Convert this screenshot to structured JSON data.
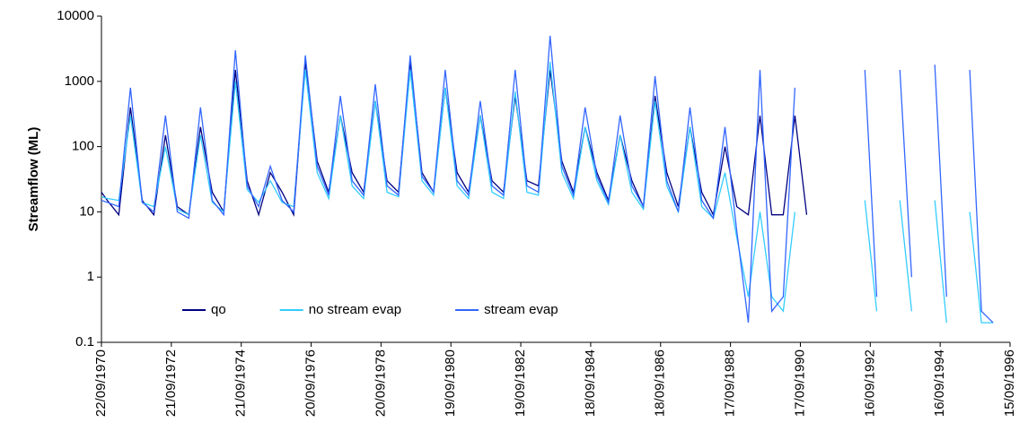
{
  "chart_data": {
    "type": "line",
    "y_label": "Streamflow (ML)",
    "y_log": true,
    "ylim": [
      0.1,
      10000
    ],
    "yticks": [
      0.1,
      1,
      10,
      100,
      1000,
      10000
    ],
    "xlim": [
      "22/09/1970",
      "15/09/1996"
    ],
    "xticks": [
      "22/09/1970",
      "21/09/1972",
      "21/09/1974",
      "20/09/1976",
      "20/09/1978",
      "19/09/1980",
      "19/09/1982",
      "18/09/1984",
      "18/09/1986",
      "17/09/1988",
      "17/09/1990",
      "16/09/1992",
      "16/09/1994",
      "15/09/1996"
    ],
    "grid": false,
    "legend": "lower left",
    "x": [
      "22/09/1970",
      "22/11/1970",
      "22/03/1971",
      "22/07/1971",
      "22/11/1971",
      "22/03/1972",
      "22/07/1972",
      "22/11/1972",
      "22/03/1973",
      "22/07/1973",
      "22/11/1973",
      "22/03/1974",
      "22/07/1974",
      "22/11/1974",
      "22/03/1975",
      "22/07/1975",
      "22/11/1975",
      "22/03/1976",
      "22/07/1976",
      "22/11/1976",
      "22/03/1977",
      "22/07/1977",
      "22/11/1977",
      "22/03/1978",
      "22/07/1978",
      "22/11/1978",
      "22/03/1979",
      "22/07/1979",
      "22/11/1979",
      "22/03/1980",
      "22/07/1980",
      "22/11/1980",
      "22/03/1981",
      "22/07/1981",
      "22/11/1981",
      "22/03/1982",
      "22/07/1982",
      "22/11/1982",
      "22/03/1983",
      "22/07/1983",
      "22/11/1983",
      "22/03/1984",
      "22/07/1984",
      "22/11/1984",
      "22/03/1985",
      "22/07/1985",
      "22/11/1985",
      "22/03/1986",
      "22/07/1986",
      "22/11/1986",
      "22/03/1987",
      "22/07/1987",
      "22/11/1987",
      "22/03/1988",
      "22/07/1988",
      "22/11/1988",
      "22/03/1989",
      "22/07/1989",
      "22/11/1989",
      "22/03/1990",
      "22/07/1990",
      "22/11/1990",
      "22/03/1991",
      "22/07/1991",
      "22/11/1991",
      "22/03/1992",
      "22/07/1992",
      "22/11/1992",
      "22/03/1993",
      "22/07/1993",
      "22/11/1993",
      "22/03/1994",
      "22/07/1994",
      "22/11/1994",
      "22/03/1995",
      "22/07/1995",
      "22/11/1995",
      "22/03/1996",
      "22/07/1996"
    ],
    "series": [
      {
        "name": "qo",
        "color": "#000080",
        "values": [
          20,
          15,
          9,
          400,
          15,
          9,
          150,
          12,
          9,
          200,
          20,
          10,
          1500,
          30,
          9,
          40,
          20,
          9,
          2000,
          60,
          20,
          300,
          40,
          20,
          500,
          30,
          20,
          2000,
          40,
          20,
          800,
          40,
          20,
          300,
          30,
          20,
          600,
          30,
          25,
          1500,
          60,
          20,
          200,
          40,
          15,
          150,
          30,
          12,
          600,
          40,
          12,
          200,
          20,
          9,
          100,
          12,
          9,
          300,
          9,
          9,
          300,
          9,
          null,
          null,
          null,
          null,
          1500,
          null,
          null,
          1200,
          null,
          null,
          1500,
          null,
          null,
          1500,
          null,
          null,
          null
        ]
      },
      {
        "name": "no stream evap",
        "color": "#33ccff",
        "values": [
          17,
          16,
          15,
          300,
          14,
          12,
          100,
          11,
          9,
          150,
          14,
          10,
          1000,
          22,
          14,
          30,
          14,
          12,
          1500,
          40,
          16,
          300,
          25,
          16,
          500,
          20,
          17,
          1500,
          30,
          18,
          800,
          25,
          16,
          300,
          20,
          16,
          700,
          20,
          18,
          2000,
          40,
          16,
          200,
          30,
          13,
          150,
          20,
          11,
          500,
          25,
          10,
          200,
          12,
          8,
          40,
          4,
          0.5,
          10,
          0.5,
          0.3,
          10,
          null,
          null,
          2,
          null,
          null,
          15,
          0.3,
          null,
          15,
          0.3,
          null,
          15,
          0.2,
          null,
          10,
          0.2,
          0.2,
          null
        ]
      },
      {
        "name": "stream evap",
        "color": "#3366ff",
        "values": [
          15,
          14,
          12,
          800,
          14,
          10,
          300,
          10,
          8,
          400,
          15,
          9,
          3000,
          25,
          12,
          50,
          15,
          10,
          2500,
          50,
          18,
          600,
          30,
          18,
          900,
          25,
          18,
          2500,
          35,
          20,
          1500,
          30,
          18,
          500,
          25,
          18,
          1500,
          25,
          20,
          5000,
          50,
          18,
          400,
          35,
          14,
          300,
          25,
          12,
          1200,
          30,
          10,
          400,
          15,
          8,
          200,
          5,
          0.2,
          1500,
          0.3,
          0.5,
          800,
          null,
          null,
          5,
          null,
          null,
          1500,
          0.5,
          null,
          1500,
          1,
          null,
          1800,
          0.5,
          null,
          1500,
          0.3,
          0.2,
          null
        ]
      }
    ]
  }
}
